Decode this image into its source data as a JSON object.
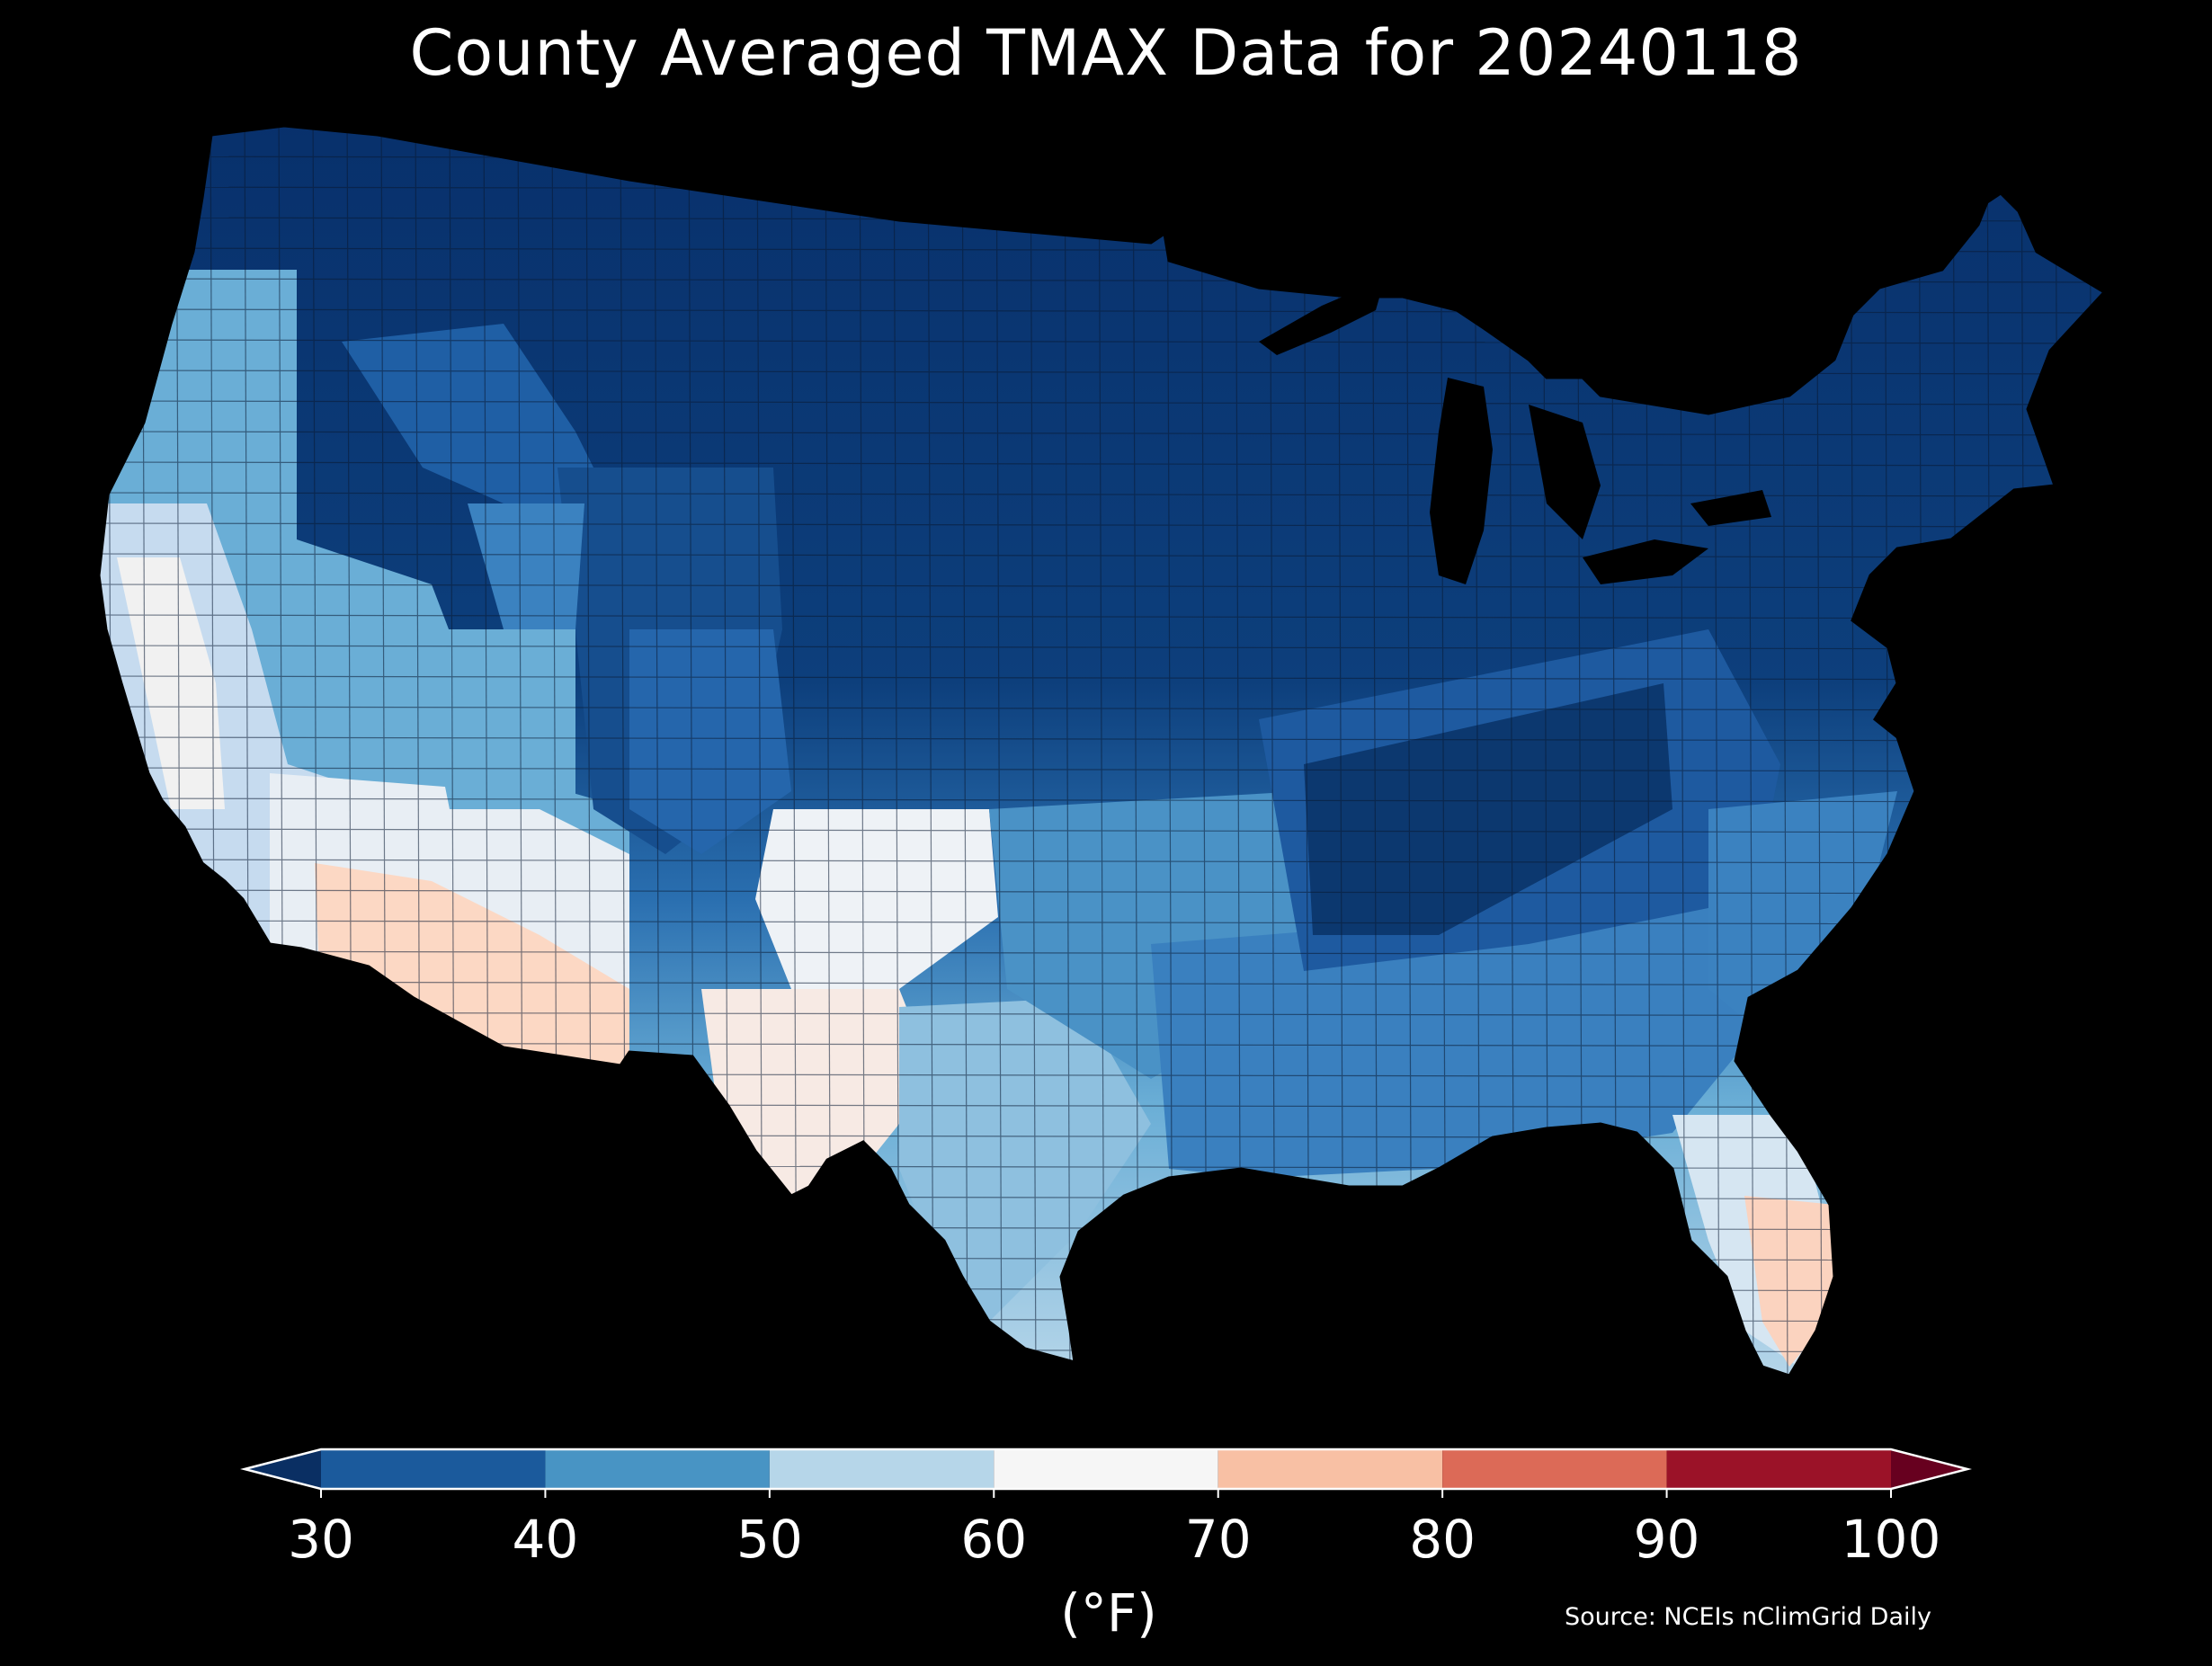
{
  "title": "County Averaged TMAX Data for 20240118",
  "colorbar": {
    "ticks": [
      "30",
      "40",
      "50",
      "60",
      "70",
      "80",
      "90",
      "100"
    ],
    "unit": "(°F)",
    "bins": [
      {
        "from": 30,
        "to": 40,
        "color": "#1b5a9c"
      },
      {
        "from": 40,
        "to": 50,
        "color": "#4894c4"
      },
      {
        "from": 50,
        "to": 60,
        "color": "#b6d6e9"
      },
      {
        "from": 60,
        "to": 70,
        "color": "#f6f6f6"
      },
      {
        "from": 70,
        "to": 80,
        "color": "#f8c0a4"
      },
      {
        "from": 80,
        "to": 90,
        "color": "#dc6a57"
      },
      {
        "from": 90,
        "to": 100,
        "color": "#9b1228"
      }
    ],
    "under_color": "#0a2f63",
    "over_color": "#67001f"
  },
  "source": "Source: NCEIs nClimGrid Daily"
}
